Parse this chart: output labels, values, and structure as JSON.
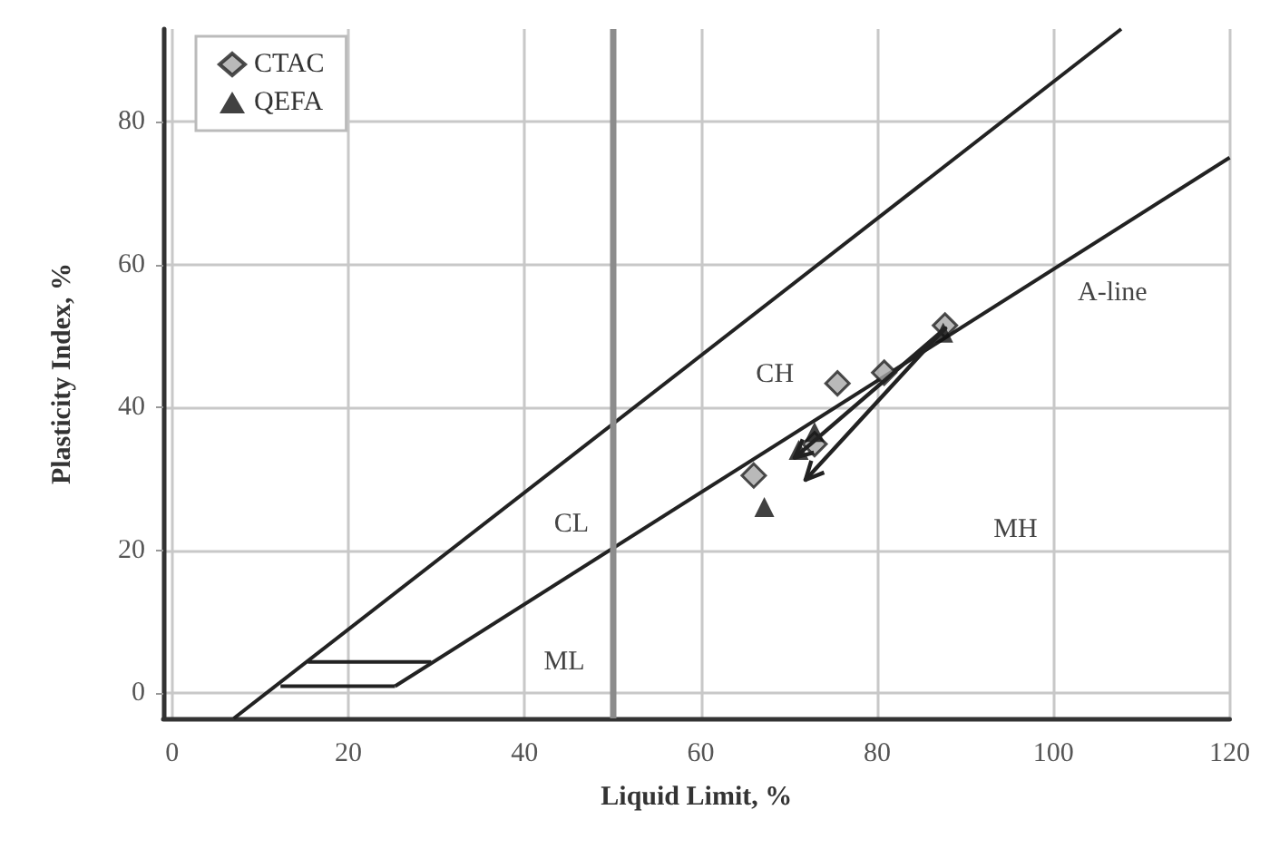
{
  "chart_data": {
    "type": "scatter",
    "xlabel": "Liquid Limit, %",
    "ylabel": "Plasticity Index, %",
    "xlim": [
      -1,
      120
    ],
    "xticks": [
      0,
      20,
      40,
      60,
      80,
      100,
      120
    ],
    "ylim": [
      -3.5,
      93
    ],
    "yticks": [
      0,
      20,
      40,
      60,
      80
    ],
    "grid": true,
    "legend": "top left",
    "series": [
      {
        "name": "CTAC",
        "marker": "diamond",
        "color": "#a8a8a8",
        "x": [
          66,
          72.9,
          75.5,
          80.8,
          87.7
        ],
        "values": [
          30.5,
          34.9,
          43.4,
          44.9,
          51.5
        ]
      },
      {
        "name": "QEFA",
        "marker": "triangle",
        "color": "#111111",
        "x": [
          67.2,
          71.1,
          72.9,
          87.5
        ],
        "values": [
          26.1,
          34.1,
          36.6,
          50.5
        ]
      },
      {
        "type": "line",
        "marker": "none",
        "color": "#222222",
        "x": [
          7,
          107.7
        ],
        "values": [
          -3.5,
          93
        ]
      },
      {
        "type": "line",
        "marker": "none",
        "color": "#222222",
        "x": [
          25.3,
          120
        ],
        "values": [
          1,
          75
        ]
      },
      {
        "type": "line",
        "marker": "none",
        "color": "#222222",
        "x": [
          15.4,
          29.4
        ],
        "values": [
          4.4,
          4.4
        ]
      },
      {
        "type": "line",
        "marker": "none",
        "color": "#222222",
        "x": [
          12.3,
          25.3
        ],
        "values": [
          1,
          1
        ]
      }
    ],
    "ref_lines": [
      {
        "axis": "x",
        "value": 50,
        "color": "#8c8c8c"
      }
    ],
    "annotations": [
      "CL",
      "CH",
      "ML",
      "MH",
      "A-line"
    ]
  }
}
